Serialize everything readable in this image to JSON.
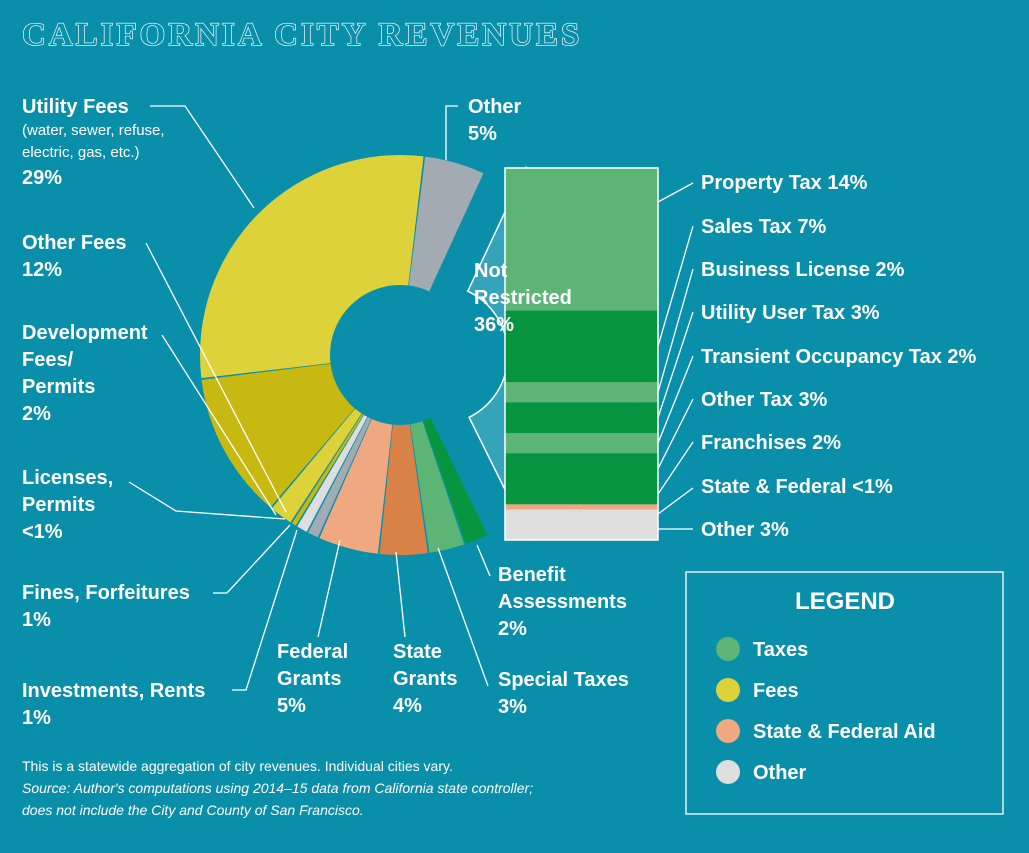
{
  "title": "CALIFORNIA CITY REVENUES",
  "chart_data": {
    "type": "pie",
    "title": "CALIFORNIA CITY REVENUES",
    "unit": "%",
    "donut_slices": [
      {
        "key": "other",
        "name": "Other",
        "label_lines": [
          "Other"
        ],
        "value_text": "5%",
        "value": 5,
        "group": "Other"
      },
      {
        "key": "not_restricted",
        "name": "Not Restricted",
        "label_lines": [
          "Not",
          "Restricted"
        ],
        "value_text": "36%",
        "value": 36,
        "group": "Taxes"
      },
      {
        "key": "benefit_assessments",
        "name": "Benefit Assessments",
        "label_lines": [
          "Benefit",
          "Assessments"
        ],
        "value_text": "2%",
        "value": 2,
        "group": "Taxes"
      },
      {
        "key": "special_taxes",
        "name": "Special Taxes",
        "label_lines": [
          "Special Taxes"
        ],
        "value_text": "3%",
        "value": 3,
        "group": "Taxes"
      },
      {
        "key": "state_grants",
        "name": "State Grants",
        "label_lines": [
          "State",
          "Grants"
        ],
        "value_text": "4%",
        "value": 4,
        "group": "State & Federal Aid"
      },
      {
        "key": "federal_grants",
        "name": "Federal Grants",
        "label_lines": [
          "Federal",
          "Grants"
        ],
        "value_text": "5%",
        "value": 5,
        "group": "State & Federal Aid"
      },
      {
        "key": "investments_rents",
        "name": "Investments, Rents",
        "label_lines": [
          "Investments, Rents"
        ],
        "value_text": "1%",
        "value": 1,
        "group": "Other"
      },
      {
        "key": "fines_forfeitures",
        "name": "Fines, Forfeitures",
        "label_lines": [
          "Fines, Forfeitures"
        ],
        "value_text": "1%",
        "value": 1,
        "group": "Other"
      },
      {
        "key": "licenses_permits",
        "name": "Licenses, Permits",
        "label_lines": [
          "Licenses,",
          "Permits"
        ],
        "value_text": "<1%",
        "value": 0.5,
        "group": "Fees"
      },
      {
        "key": "development_fees",
        "name": "Development Fees/Permits",
        "label_lines": [
          "Development",
          "Fees/",
          "Permits"
        ],
        "value_text": "2%",
        "value": 2,
        "group": "Fees"
      },
      {
        "key": "other_fees",
        "name": "Other Fees",
        "label_lines": [
          "Other Fees"
        ],
        "value_text": "12%",
        "value": 12,
        "group": "Fees"
      },
      {
        "key": "utility_fees",
        "name": "Utility Fees",
        "label_lines": [
          "Utility Fees"
        ],
        "sublabel_lines": [
          "(water, sewer, refuse,",
          "electric, gas, etc.)"
        ],
        "value_text": "29%",
        "value": 29,
        "group": "Fees"
      }
    ],
    "breakdown_of": "Not Restricted",
    "breakdown": [
      {
        "key": "property_tax",
        "name": "Property Tax",
        "value_text": "14%",
        "value": 14,
        "group": "Taxes"
      },
      {
        "key": "sales_tax",
        "name": "Sales Tax",
        "value_text": "7%",
        "value": 7,
        "group": "Taxes"
      },
      {
        "key": "business_license",
        "name": "Business License",
        "value_text": "2%",
        "value": 2,
        "group": "Taxes"
      },
      {
        "key": "utility_user_tax",
        "name": "Utility User Tax",
        "value_text": "3%",
        "value": 3,
        "group": "Taxes"
      },
      {
        "key": "transient_occupancy_tax",
        "name": "Transient Occupancy Tax",
        "value_text": "2%",
        "value": 2,
        "group": "Taxes"
      },
      {
        "key": "other_tax",
        "name": "Other Tax",
        "value_text": "3%",
        "value": 3,
        "group": "Taxes"
      },
      {
        "key": "franchises",
        "name": "Franchises",
        "value_text": "2%",
        "value": 2,
        "group": "Taxes"
      },
      {
        "key": "state_federal",
        "name": "State & Federal",
        "value_text": "<1%",
        "value": 0.5,
        "group": "State & Federal Aid"
      },
      {
        "key": "other",
        "name": "Other",
        "value_text": "3%",
        "value": 3,
        "group": "Other"
      }
    ],
    "legend_title": "LEGEND",
    "legend_position": "bottom-right",
    "legend": [
      {
        "name": "Taxes",
        "color": "#5cb574"
      },
      {
        "name": "Fees",
        "color": "#ddd23a"
      },
      {
        "name": "State & Federal Aid",
        "color": "#f0a880"
      },
      {
        "name": "Other",
        "color": "#dedede"
      }
    ]
  },
  "colors": {
    "background": "#0a8fab",
    "not_restricted": "#35a3ba",
    "taxes_light": "#5cb574",
    "taxes_dark": "#06943e",
    "fees_light": "#ddd23a",
    "fees_dark": "#c8b812",
    "aid_light": "#f0a880",
    "aid_dark": "#d98248",
    "other_gray": "#a2aab2",
    "other_light": "#dedede"
  },
  "notes": {
    "line1": "This is a statewide aggregation of city revenues. Individual cities vary.",
    "line2": "Source: Author's computations using 2014–15 data from California state controller;",
    "line3": "does not include the City and County of San Francisco."
  }
}
